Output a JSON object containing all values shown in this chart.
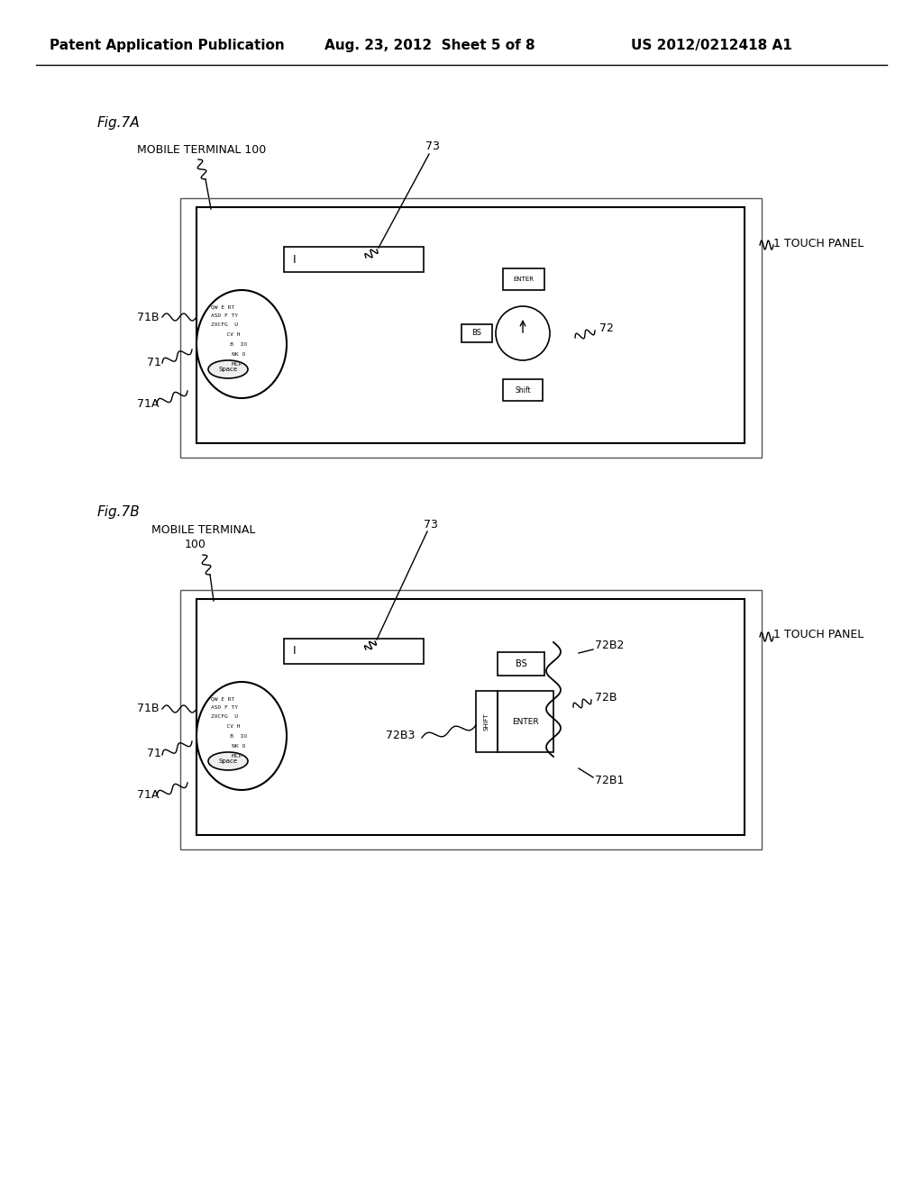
{
  "header_left": "Patent Application Publication",
  "header_mid": "Aug. 23, 2012  Sheet 5 of 8",
  "header_right": "US 2012/0212418 A1",
  "fig7a_label": "Fig.7A",
  "fig7b_label": "Fig.7B",
  "bg_color": "#ffffff",
  "line_color": "#000000",
  "gray_color": "#666666"
}
